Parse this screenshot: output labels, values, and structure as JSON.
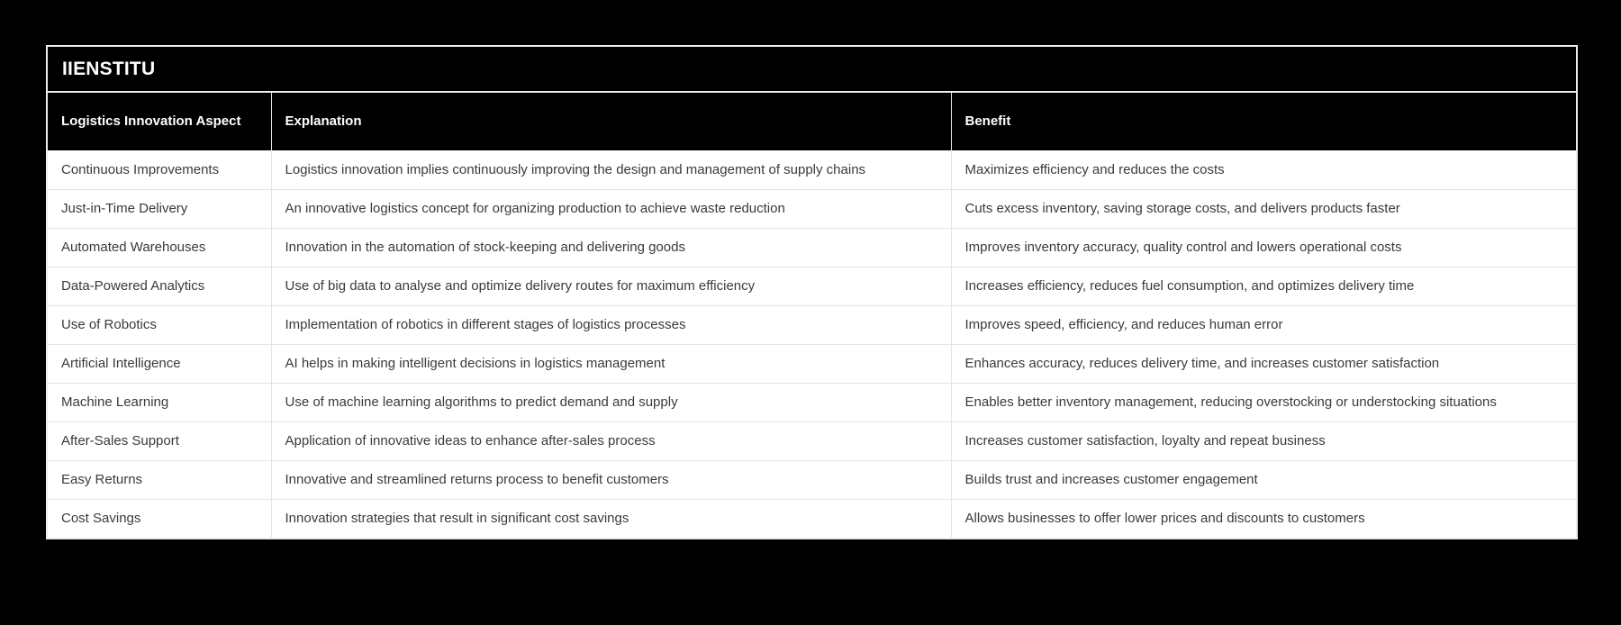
{
  "card": {
    "title": "IIENSTITU"
  },
  "table": {
    "columns": [
      "Logistics Innovation Aspect",
      "Explanation",
      "Benefit"
    ],
    "rows": [
      {
        "aspect": "Continuous Improvements",
        "explanation": "Logistics innovation implies continuously improving the design and management of supply chains",
        "benefit": "Maximizes efficiency and reduces the costs"
      },
      {
        "aspect": "Just-in-Time Delivery",
        "explanation": "An innovative logistics concept for organizing production to achieve waste reduction",
        "benefit": "Cuts excess inventory, saving storage costs, and delivers products faster"
      },
      {
        "aspect": "Automated Warehouses",
        "explanation": "Innovation in the automation of stock-keeping and delivering goods",
        "benefit": "Improves inventory accuracy, quality control and lowers operational costs"
      },
      {
        "aspect": "Data-Powered Analytics",
        "explanation": "Use of big data to analyse and optimize delivery routes for maximum efficiency",
        "benefit": "Increases efficiency, reduces fuel consumption, and optimizes delivery time"
      },
      {
        "aspect": "Use of Robotics",
        "explanation": "Implementation of robotics in different stages of logistics processes",
        "benefit": "Improves speed, efficiency, and reduces human error"
      },
      {
        "aspect": "Artificial Intelligence",
        "explanation": "AI helps in making intelligent decisions in logistics management",
        "benefit": "Enhances accuracy, reduces delivery time, and increases customer satisfaction"
      },
      {
        "aspect": "Machine Learning",
        "explanation": "Use of machine learning algorithms to predict demand and supply",
        "benefit": "Enables better inventory management, reducing overstocking or understocking situations"
      },
      {
        "aspect": "After-Sales Support",
        "explanation": "Application of innovative ideas to enhance after-sales process",
        "benefit": "Increases customer satisfaction, loyalty and repeat business"
      },
      {
        "aspect": "Easy Returns",
        "explanation": "Innovative and streamlined returns process to benefit customers",
        "benefit": "Builds trust and increases customer engagement"
      },
      {
        "aspect": "Cost Savings",
        "explanation": "Innovation strategies that result in significant cost savings",
        "benefit": "Allows businesses to offer lower prices and discounts to customers"
      }
    ]
  },
  "colors": {
    "page_background": "#000000",
    "card_border": "#ececec",
    "header_background": "#000000",
    "header_text": "#ffffff",
    "row_background": "#ffffff",
    "row_text": "#3a3a3a",
    "divider": "#e3e3e3"
  }
}
